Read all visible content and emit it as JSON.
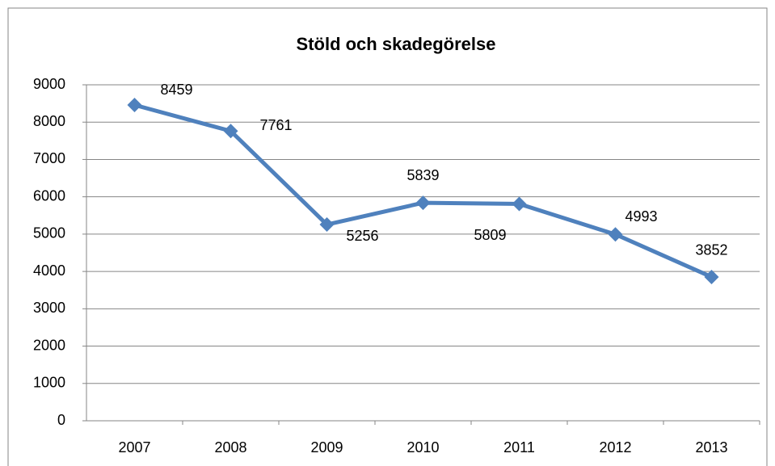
{
  "chart_data": {
    "type": "line",
    "title": "Stöld och skadegörelse",
    "categories": [
      "2007",
      "2008",
      "2009",
      "2010",
      "2011",
      "2012",
      "2013"
    ],
    "series": [
      {
        "name": "Stöld och skadegörelse",
        "color": "#4f81bd",
        "values": [
          8459,
          7761,
          5256,
          5839,
          5809,
          4993,
          3852
        ]
      }
    ],
    "ylim": [
      0,
      9000
    ],
    "yticks": [
      0,
      1000,
      2000,
      3000,
      4000,
      5000,
      6000,
      7000,
      8000,
      9000
    ],
    "grid": true
  }
}
